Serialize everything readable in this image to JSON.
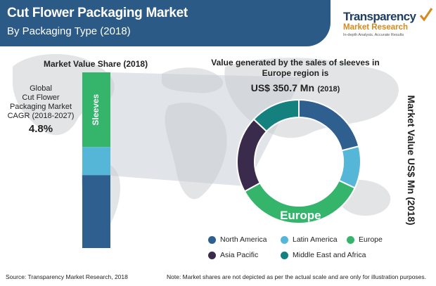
{
  "header": {
    "title": "Cut Flower Packaging Market",
    "subtitle": "By Packaging Type (2018)"
  },
  "logo": {
    "name": "Transparency",
    "line2": "Market Research",
    "tagline": "In-depth Analysis. Accurate Results"
  },
  "colors": {
    "header": "#2c5a86",
    "north_america": "#2f5f8f",
    "latin_america": "#55b6d8",
    "europe": "#35b56c",
    "asia_pacific": "#3a2b4d",
    "middle_east_africa": "#14817f"
  },
  "left_panel": {
    "title": "Market Value Share (2018)",
    "cagr_label": "Global\nCut Flower\nPackaging Market\nCAGR (2018-2027)",
    "cagr_value": "4.8%"
  },
  "right_panel": {
    "title": "Value generated by the sales of sleeves in Europe region is",
    "value": "US$ 350.7 Mn",
    "value_year": "(2018)",
    "axis_label": "Market Value US$ Mn (2018)"
  },
  "chart_data": [
    {
      "type": "bar",
      "stacked": true,
      "title": "Market Value Share (2018)",
      "categories": [
        ""
      ],
      "series": [
        {
          "name": "Sleeves",
          "values": [
            0.425
          ],
          "color": "#35b56c",
          "show_label": true
        },
        {
          "name": "",
          "values": [
            0.16
          ],
          "color": "#55b6d8",
          "show_label": false
        },
        {
          "name": "",
          "values": [
            0.415
          ],
          "color": "#2f5f8f",
          "show_label": false
        }
      ],
      "note": "Market shares are not depicted as per the actual scale"
    },
    {
      "type": "pie",
      "donut": true,
      "title": "Value generated by the sales of sleeves in Europe region is",
      "labels": [
        "North America",
        "Latin America",
        "Europe",
        "Asia Pacific",
        "Middle East and Africa"
      ],
      "values": [
        21,
        11,
        35,
        20,
        13
      ],
      "colors": [
        "#2f5f8f",
        "#55b6d8",
        "#35b56c",
        "#3a2b4d",
        "#14817f"
      ],
      "highlight": "Europe",
      "highlight_label": "Europe"
    }
  ],
  "legend": [
    {
      "label": "North America",
      "color": "#2f5f8f"
    },
    {
      "label": "Latin America",
      "color": "#55b6d8"
    },
    {
      "label": "Europe",
      "color": "#35b56c"
    },
    {
      "label": "Asia Pacific",
      "color": "#3a2b4d"
    },
    {
      "label": "Middle East and Africa",
      "color": "#14817f"
    }
  ],
  "footer": {
    "source": "Source: Transparency Market Research, 2018",
    "note": "Note: Market shares are not depicted as per the actual scale and are only for illustration purposes."
  }
}
